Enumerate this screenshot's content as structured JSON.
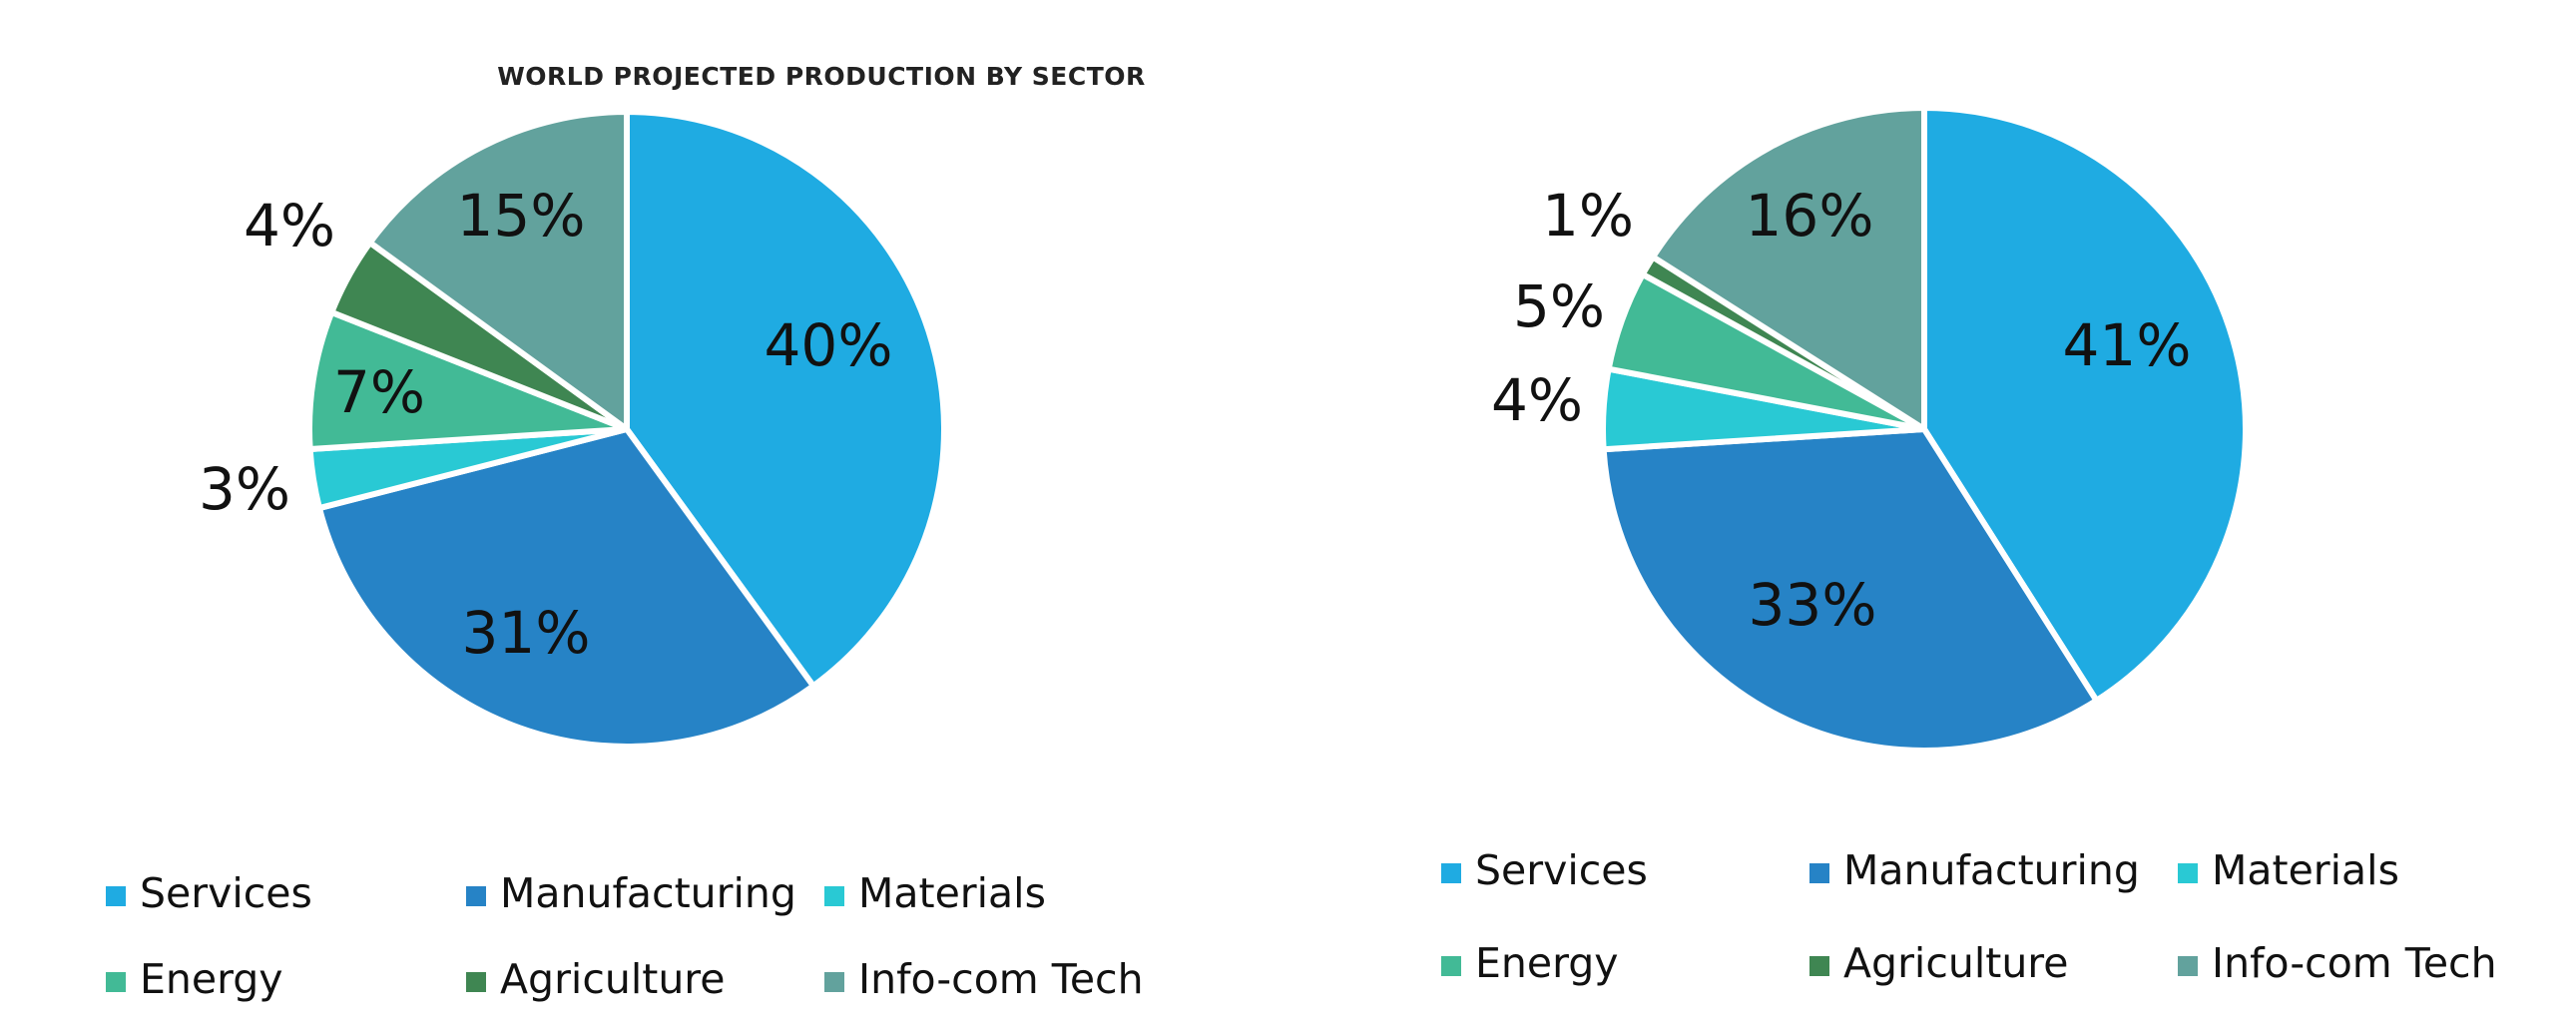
{
  "title": "WORLD PROJECTED PRODUCTION BY SECTOR",
  "chart_data": [
    {
      "type": "pie",
      "categories": [
        "Services",
        "Manufacturing",
        "Materials",
        "Energy",
        "Agriculture",
        "Info-com Tech"
      ],
      "values": [
        40,
        31,
        3,
        7,
        4,
        15
      ],
      "labels": [
        "40%",
        "31%",
        "3%",
        "7%",
        "4%",
        "15%"
      ],
      "colors": [
        "#1fabe2",
        "#2683c6",
        "#29c9d4",
        "#42ba96",
        "#3f8652",
        "#62a29d"
      ],
      "legend_position": "bottom"
    },
    {
      "type": "pie",
      "categories": [
        "Services",
        "Manufacturing",
        "Materials",
        "Energy",
        "Agriculture",
        "Info-com Tech"
      ],
      "values": [
        41,
        33,
        4,
        5,
        1,
        16
      ],
      "labels": [
        "41%",
        "33%",
        "4%",
        "5%",
        "1%",
        "16%"
      ],
      "colors": [
        "#1fabe2",
        "#2683c6",
        "#29c9d4",
        "#42ba96",
        "#3f8652",
        "#62a29d"
      ],
      "legend_position": "bottom"
    }
  ]
}
